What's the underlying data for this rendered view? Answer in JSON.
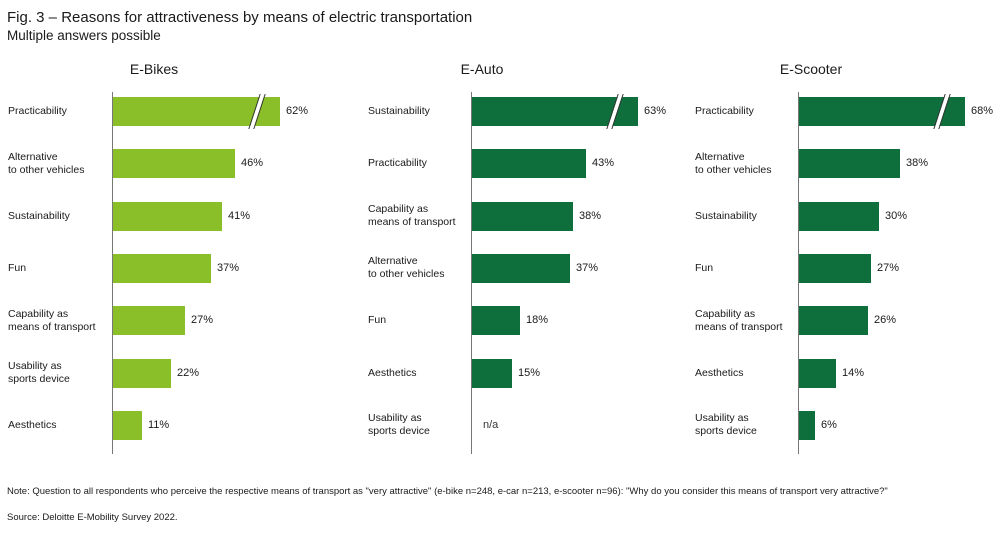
{
  "header": {
    "title": "Fig. 3 – Reasons for attractiveness by means of electric transportation",
    "subtitle": "Multiple answers possible"
  },
  "colors": {
    "ebike": "#8bbf2a",
    "ecar": "#0f6f3c",
    "escooter": "#0f6f3c"
  },
  "chart_data": [
    {
      "type": "bar",
      "orientation": "horizontal",
      "title": "E-Bikes",
      "color": "#8bbf2a",
      "categories": [
        "Practicability",
        "Alternative\nto other vehicles",
        "Sustainability",
        "Fun",
        "Capability as\nmeans of transport",
        "Usability as\nsports device",
        "Aesthetics"
      ],
      "values": [
        62,
        46,
        41,
        37,
        27,
        22,
        11
      ],
      "labels": [
        "62%",
        "46%",
        "41%",
        "37%",
        "27%",
        "22%",
        "11%"
      ],
      "broken": [
        true,
        false,
        false,
        false,
        false,
        false,
        false
      ],
      "unit": "%"
    },
    {
      "type": "bar",
      "orientation": "horizontal",
      "title": "E-Auto",
      "color": "#0f6f3c",
      "categories": [
        "Sustainability",
        "Practicability",
        "Capability as\nmeans of transport",
        "Alternative\nto other vehicles",
        "Fun",
        "Aesthetics",
        "Usability as\nsports device"
      ],
      "values": [
        63,
        43,
        38,
        37,
        18,
        15,
        null
      ],
      "labels": [
        "63%",
        "43%",
        "38%",
        "37%",
        "18%",
        "15%",
        "n/a"
      ],
      "broken": [
        true,
        false,
        false,
        false,
        false,
        false,
        false
      ],
      "unit": "%"
    },
    {
      "type": "bar",
      "orientation": "horizontal",
      "title": "E-Scooter",
      "color": "#0f6f3c",
      "categories": [
        "Practicability",
        "Alternative\nto other vehicles",
        "Sustainability",
        "Fun",
        "Capability as\nmeans of transport",
        "Aesthetics",
        "Usability as\nsports device"
      ],
      "values": [
        68,
        38,
        30,
        27,
        26,
        14,
        6
      ],
      "labels": [
        "68%",
        "38%",
        "30%",
        "27%",
        "26%",
        "14%",
        "6%"
      ],
      "broken": [
        true,
        false,
        false,
        false,
        false,
        false,
        false
      ],
      "unit": "%"
    }
  ],
  "footer": {
    "note": "Note: Question to all respondents who perceive the respective means of transport as \"very attractive\" (e-bike n=248, e-car n=213, e-scooter n=96): \"Why do you consider this means of transport very attractive?\"",
    "source": "Source: Deloitte E-Mobility Survey 2022."
  }
}
